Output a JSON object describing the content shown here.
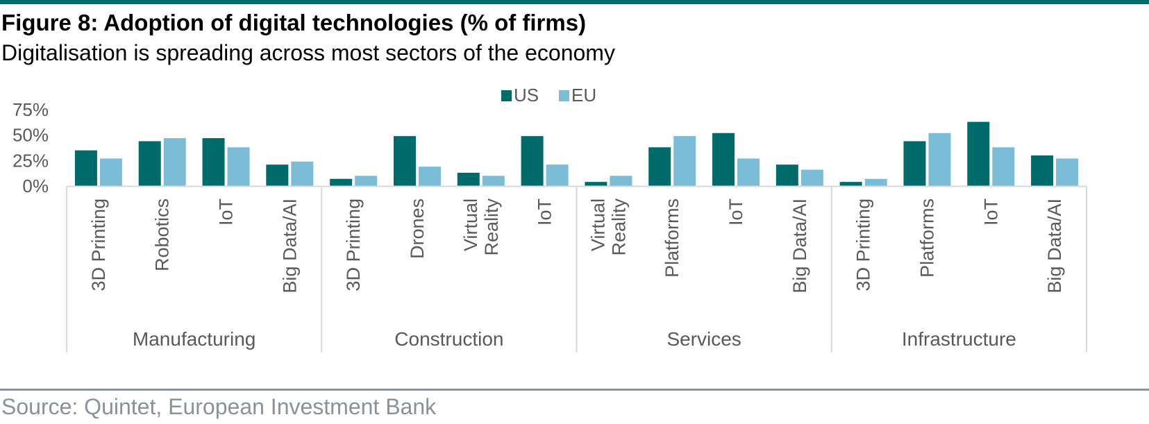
{
  "header": {
    "title": "Figure 8: Adoption of digital technologies (% of firms)",
    "subtitle": "Digitalisation is spreading across most sectors of the economy"
  },
  "footer": {
    "source": "Source: Quintet, European Investment Bank"
  },
  "colors": {
    "us": "#006b6b",
    "eu": "#7bbcd6",
    "axis_text": "#595959",
    "rule": "#006b6b",
    "divider": "#d9d9d9"
  },
  "chart_data": {
    "type": "bar",
    "title": "Figure 8: Adoption of digital technologies (% of firms)",
    "ylim": [
      0,
      75
    ],
    "yticks": [
      "0%",
      "25%",
      "50%",
      "75%"
    ],
    "ytick_values": [
      0,
      25,
      50,
      75
    ],
    "legend_position": "top-center",
    "grid": false,
    "groups": [
      {
        "name": "Manufacturing",
        "categories": [
          "3D Printing",
          "Robotics",
          "IoT",
          "Big Data/AI"
        ]
      },
      {
        "name": "Construction",
        "categories": [
          "3D Printing",
          "Drones",
          "Virtual Reality",
          "IoT"
        ]
      },
      {
        "name": "Services",
        "categories": [
          "Virtual Reality",
          "Platforms",
          "IoT",
          "Big Data/AI"
        ]
      },
      {
        "name": "Infrastructure",
        "categories": [
          "3D Printing",
          "Platforms",
          "IoT",
          "Big Data/AI"
        ]
      }
    ],
    "series": [
      {
        "name": "US",
        "values": [
          35,
          44,
          47,
          21,
          7,
          49,
          13,
          49,
          4,
          38,
          52,
          21,
          4,
          44,
          63,
          30
        ]
      },
      {
        "name": "EU",
        "values": [
          27,
          47,
          38,
          24,
          10,
          19,
          10,
          21,
          10,
          49,
          27,
          16,
          7,
          52,
          38,
          27
        ]
      }
    ]
  }
}
